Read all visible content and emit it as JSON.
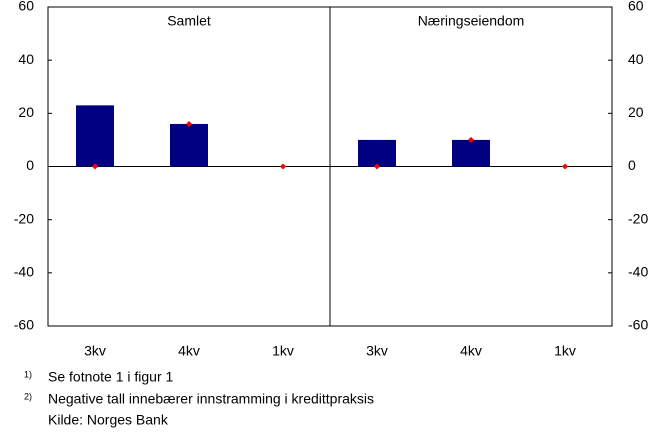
{
  "chart_data": [
    {
      "type": "bar",
      "title": "Samlet",
      "categories": [
        "3kv",
        "4kv",
        "1kv"
      ],
      "series": [
        {
          "type": "bar",
          "color": "#000080",
          "values": [
            23,
            16,
            0
          ]
        },
        {
          "type": "point",
          "color": "#ff0000",
          "values": [
            0,
            16,
            0
          ]
        }
      ],
      "ylim": [
        -60,
        60
      ],
      "yticks": [
        -60,
        -40,
        -20,
        0,
        20,
        40,
        60
      ],
      "axis_side": "left"
    },
    {
      "type": "bar",
      "title": "Næringseiendom",
      "categories": [
        "3kv",
        "4kv",
        "1kv"
      ],
      "series": [
        {
          "type": "bar",
          "color": "#000080",
          "values": [
            10,
            10,
            0
          ]
        },
        {
          "type": "point",
          "color": "#ff0000",
          "values": [
            0,
            10,
            0
          ]
        }
      ],
      "ylim": [
        -60,
        60
      ],
      "yticks": [
        -60,
        -40,
        -20,
        0,
        20,
        40,
        60
      ],
      "axis_side": "right"
    }
  ],
  "footnotes": [
    {
      "marker": "1)",
      "text": "Se fotnote 1 i figur 1"
    },
    {
      "marker": "2)",
      "text": "Negative tall innebærer innstramming i kredittpraksis"
    }
  ],
  "source": "Kilde: Norges Bank"
}
